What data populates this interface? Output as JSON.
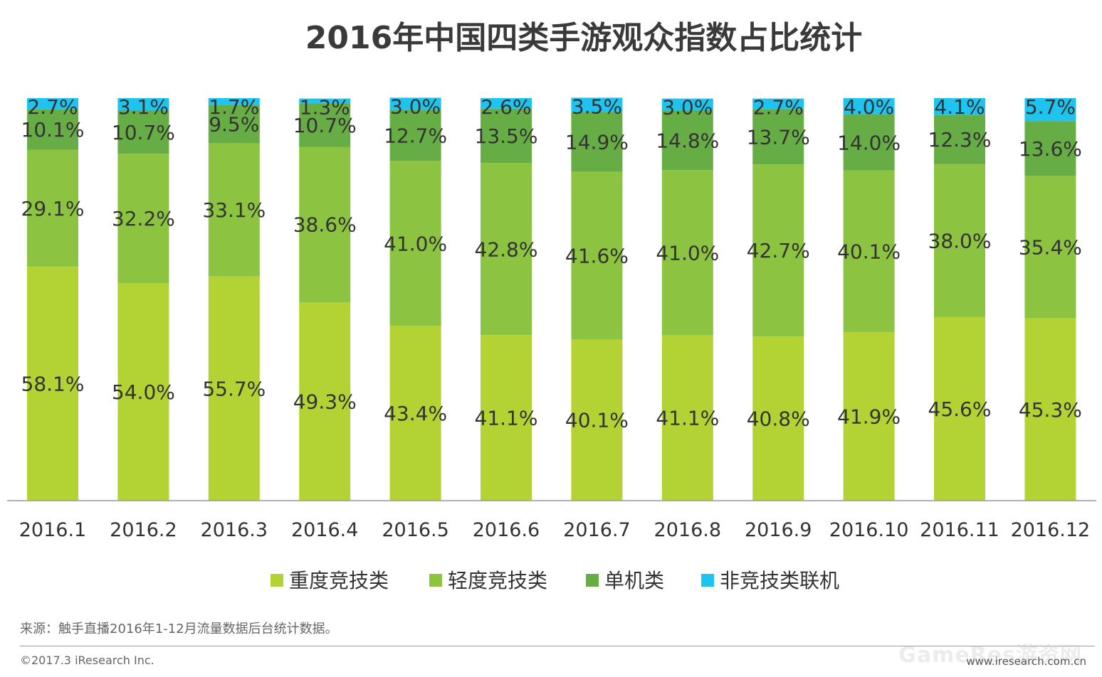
{
  "colors": {
    "heavy": "#b3d334",
    "light": "#8cc341",
    "single": "#67ad45",
    "online": "#1ec3f0",
    "axis": "#999999"
  },
  "chart_data": {
    "type": "bar",
    "stacked": true,
    "title": "2016年中国四类手游观众指数占比统计",
    "categories": [
      "2016.1",
      "2016.2",
      "2016.3",
      "2016.4",
      "2016.5",
      "2016.6",
      "2016.7",
      "2016.8",
      "2016.9",
      "2016.10",
      "2016.11",
      "2016.12"
    ],
    "series": [
      {
        "name": "重度竞技类",
        "color_key": "heavy",
        "values": [
          58.1,
          54.0,
          55.7,
          49.3,
          43.4,
          41.1,
          40.1,
          41.1,
          40.8,
          41.9,
          45.6,
          45.3
        ],
        "labels": [
          "58.1%",
          "54.0%",
          "55.7%",
          "49.3%",
          "43.4%",
          "41.1%",
          "40.1%",
          "41.1%",
          "40.8%",
          "41.9%",
          "45.6%",
          "45.3%"
        ]
      },
      {
        "name": "轻度竞技类",
        "color_key": "light",
        "values": [
          29.1,
          32.2,
          33.1,
          38.6,
          41.0,
          42.8,
          41.6,
          41.0,
          42.7,
          40.1,
          38.0,
          35.4
        ],
        "labels": [
          "29.1%",
          "32.2%",
          "33.1%",
          "38.6%",
          "41.0%",
          "42.8%",
          "41.6%",
          "41.0%",
          "42.7%",
          "40.1%",
          "38.0%",
          "35.4%"
        ]
      },
      {
        "name": "单机类",
        "color_key": "single",
        "values": [
          10.1,
          10.7,
          9.5,
          10.7,
          12.7,
          13.5,
          14.9,
          14.8,
          13.7,
          14.0,
          12.3,
          13.6
        ],
        "labels": [
          "10.1%",
          "10.7%",
          "9.5%",
          "10.7%",
          "12.7%",
          "13.5%",
          "14.9%",
          "14.8%",
          "13.7%",
          "14.0%",
          "12.3%",
          "13.6%"
        ]
      },
      {
        "name": "非竞技类联机",
        "color_key": "online",
        "values": [
          2.7,
          3.1,
          1.7,
          1.3,
          3.0,
          2.6,
          3.5,
          3.0,
          2.7,
          4.0,
          4.1,
          5.7
        ],
        "labels": [
          "2.7%",
          "3.1%",
          "1.7%",
          "1.3%",
          "3.0%",
          "2.6%",
          "3.5%",
          "3.0%",
          "2.7%",
          "4.0%",
          "4.1%",
          "5.7%"
        ]
      }
    ],
    "ylim": [
      0,
      100
    ],
    "grid": false,
    "legend_position": "bottom"
  },
  "footer": {
    "source": "来源：触手直播2016年1-12月流量数据后台统计数据。",
    "copyright": "©2017.3 iResearch Inc.",
    "website": "www.iresearch.com.cn",
    "watermark": "GameRes游资网"
  }
}
